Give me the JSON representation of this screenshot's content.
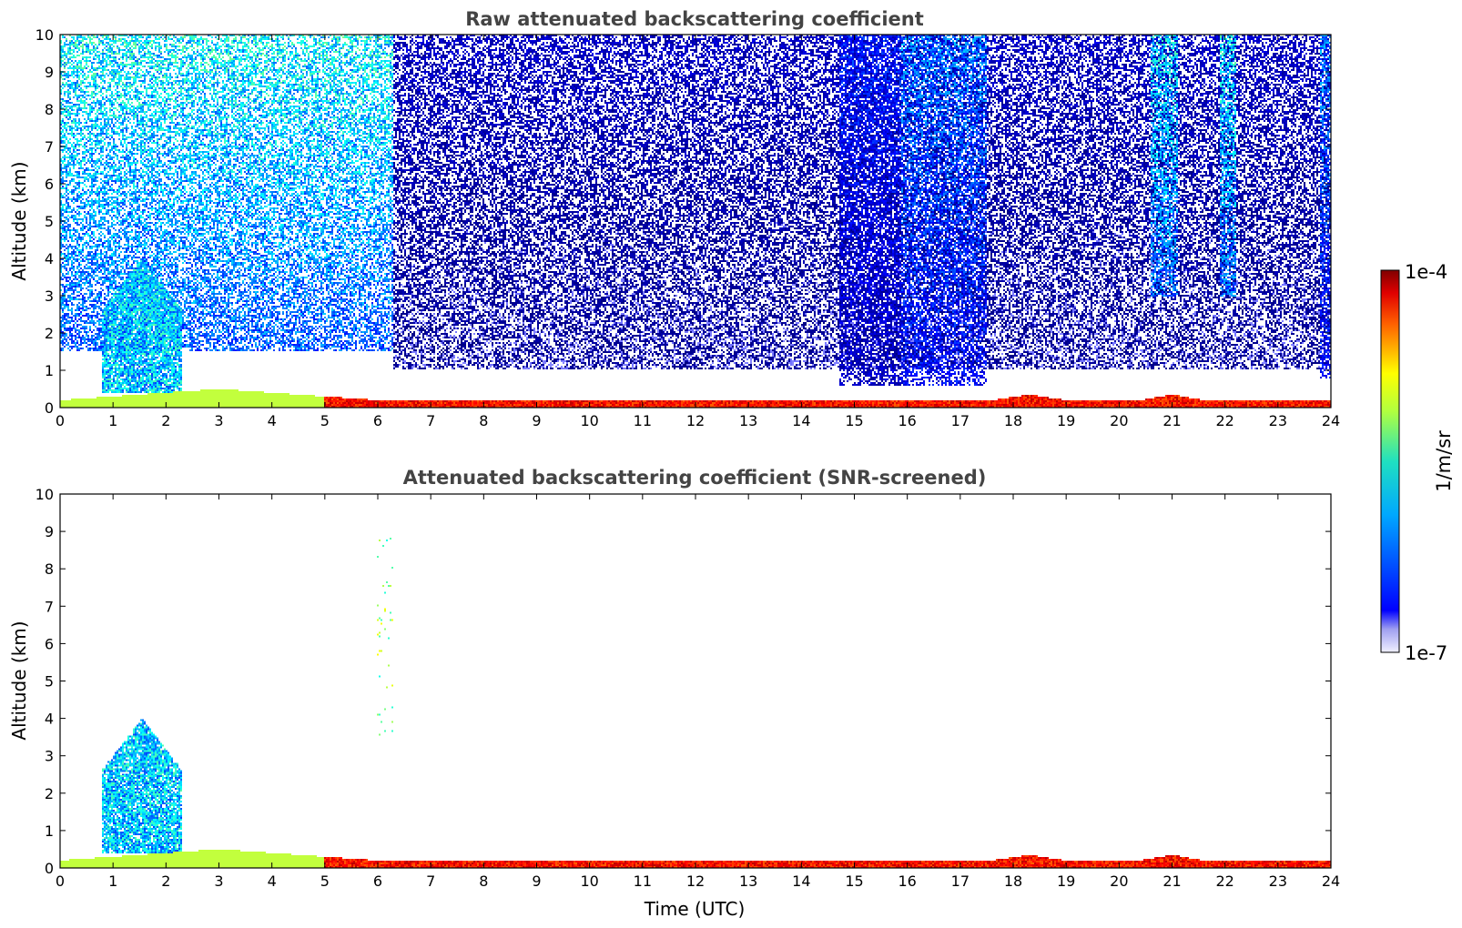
{
  "chart_data": [
    {
      "type": "heatmap",
      "title": "Raw attenuated backscattering coefficient",
      "xlabel": "",
      "ylabel": "Altitude (km)",
      "xlim": [
        0,
        24
      ],
      "ylim": [
        0,
        10
      ],
      "xticks": [
        "0",
        "1",
        "2",
        "3",
        "4",
        "5",
        "6",
        "7",
        "8",
        "9",
        "10",
        "11",
        "12",
        "13",
        "14",
        "15",
        "16",
        "17",
        "18",
        "19",
        "20",
        "21",
        "22",
        "23",
        "24"
      ],
      "yticks": [
        "0",
        "1",
        "2",
        "3",
        "4",
        "5",
        "6",
        "7",
        "8",
        "9",
        "10"
      ],
      "scale": "log",
      "colormap": "jet",
      "features": [
        {
          "kind": "noise",
          "t": [
            0,
            6.3
          ],
          "z": [
            1.5,
            10
          ],
          "level": 0.42
        },
        {
          "kind": "noise",
          "t": [
            6.3,
            24
          ],
          "z": [
            1.0,
            10
          ],
          "level": 0.14
        },
        {
          "kind": "noise",
          "t": [
            14.7,
            15.9
          ],
          "z": [
            0.6,
            10
          ],
          "level": 0.22
        },
        {
          "kind": "noise",
          "t": [
            15.9,
            17.5
          ],
          "z": [
            0.6,
            10
          ],
          "level": 0.3
        },
        {
          "kind": "noise",
          "t": [
            20.6,
            21.1
          ],
          "z": [
            3,
            10
          ],
          "level": 0.4
        },
        {
          "kind": "noise",
          "t": [
            21.9,
            22.2
          ],
          "z": [
            3,
            10
          ],
          "level": 0.4
        },
        {
          "kind": "noise",
          "t": [
            23.8,
            24
          ],
          "z": [
            0.8,
            10
          ],
          "level": 0.3
        },
        {
          "kind": "cloud",
          "t": [
            0.8,
            2.3
          ],
          "z": [
            0.4,
            4.0
          ],
          "level": 0.36
        },
        {
          "kind": "layer",
          "t": [
            0,
            24
          ],
          "z": [
            0,
            0.55
          ],
          "level": 0.8
        }
      ]
    },
    {
      "type": "heatmap",
      "title": "Attenuated backscattering coefficient (SNR-screened)",
      "xlabel": "Time (UTC)",
      "ylabel": "Altitude (km)",
      "xlim": [
        0,
        24
      ],
      "ylim": [
        0,
        10
      ],
      "xticks": [
        "0",
        "1",
        "2",
        "3",
        "4",
        "5",
        "6",
        "7",
        "8",
        "9",
        "10",
        "11",
        "12",
        "13",
        "14",
        "15",
        "16",
        "17",
        "18",
        "19",
        "20",
        "21",
        "22",
        "23",
        "24"
      ],
      "yticks": [
        "0",
        "1",
        "2",
        "3",
        "4",
        "5",
        "6",
        "7",
        "8",
        "9",
        "10"
      ],
      "scale": "log",
      "colormap": "jet",
      "features": [
        {
          "kind": "cloud",
          "t": [
            0.8,
            2.3
          ],
          "z": [
            0.4,
            4.0
          ],
          "level": 0.36
        },
        {
          "kind": "sparse",
          "t": [
            6.0,
            6.3
          ],
          "z": [
            3.5,
            9.0
          ],
          "level": 0.55
        },
        {
          "kind": "layer",
          "t": [
            0,
            24
          ],
          "z": [
            0,
            0.55
          ],
          "level": 0.8
        }
      ]
    }
  ],
  "colorbar": {
    "label": "1/m/sr",
    "max_label": "1e-4",
    "min_label": "1e-7",
    "range": [
      1e-07,
      0.0001
    ]
  }
}
